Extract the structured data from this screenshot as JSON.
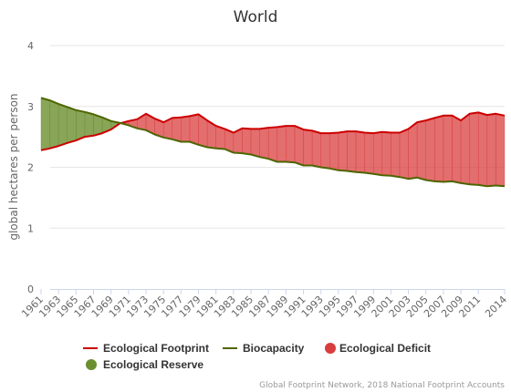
{
  "chart_data": {
    "type": "area",
    "title": "World",
    "xlabel": "",
    "ylabel": "global hectares per person",
    "xlim": [
      1961,
      2014
    ],
    "ylim": [
      0,
      4
    ],
    "yticks": [
      0,
      1,
      2,
      3,
      4
    ],
    "xtick_labels": [
      "1961",
      "1963",
      "1965",
      "1967",
      "1969",
      "1971",
      "1973",
      "1975",
      "1977",
      "1979",
      "1981",
      "1983",
      "1985",
      "1987",
      "1989",
      "1991",
      "1993",
      "1995",
      "1997",
      "1999",
      "2001",
      "2003",
      "2005",
      "2007",
      "2009",
      "2011",
      "2014"
    ],
    "grid": true,
    "legend_position": "bottom",
    "x": [
      1961,
      1962,
      1963,
      1964,
      1965,
      1966,
      1967,
      1968,
      1969,
      1970,
      1971,
      1972,
      1973,
      1974,
      1975,
      1976,
      1977,
      1978,
      1979,
      1980,
      1981,
      1982,
      1983,
      1984,
      1985,
      1986,
      1987,
      1988,
      1989,
      1990,
      1991,
      1992,
      1993,
      1994,
      1995,
      1996,
      1997,
      1998,
      1999,
      2000,
      2001,
      2002,
      2003,
      2004,
      2005,
      2006,
      2007,
      2008,
      2009,
      2010,
      2011,
      2012,
      2013,
      2014
    ],
    "series": [
      {
        "name": "Ecological Footprint",
        "color": "#cc0000",
        "values": [
          2.28,
          2.31,
          2.35,
          2.4,
          2.44,
          2.5,
          2.52,
          2.56,
          2.62,
          2.72,
          2.76,
          2.79,
          2.88,
          2.8,
          2.74,
          2.81,
          2.82,
          2.84,
          2.87,
          2.77,
          2.68,
          2.63,
          2.57,
          2.64,
          2.63,
          2.63,
          2.65,
          2.66,
          2.68,
          2.68,
          2.62,
          2.6,
          2.56,
          2.56,
          2.57,
          2.59,
          2.59,
          2.57,
          2.56,
          2.58,
          2.57,
          2.57,
          2.63,
          2.74,
          2.77,
          2.81,
          2.85,
          2.85,
          2.77,
          2.88,
          2.9,
          2.86,
          2.88,
          2.85
        ]
      },
      {
        "name": "Biocapacity",
        "color": "#4d6600",
        "values": [
          3.14,
          3.1,
          3.04,
          2.99,
          2.94,
          2.91,
          2.87,
          2.82,
          2.76,
          2.73,
          2.69,
          2.64,
          2.61,
          2.54,
          2.49,
          2.46,
          2.42,
          2.42,
          2.37,
          2.33,
          2.31,
          2.3,
          2.24,
          2.23,
          2.21,
          2.17,
          2.14,
          2.09,
          2.09,
          2.08,
          2.03,
          2.03,
          2.0,
          1.98,
          1.95,
          1.94,
          1.92,
          1.91,
          1.89,
          1.87,
          1.86,
          1.84,
          1.81,
          1.83,
          1.79,
          1.77,
          1.76,
          1.77,
          1.74,
          1.72,
          1.71,
          1.69,
          1.7,
          1.69
        ]
      }
    ],
    "fills": [
      {
        "name": "Ecological Deficit",
        "color": "#d93d3d"
      },
      {
        "name": "Ecological Reserve",
        "color": "#6b8f2e"
      }
    ],
    "credits": "Global Footprint Network, 2018 National Footprint Accounts"
  }
}
